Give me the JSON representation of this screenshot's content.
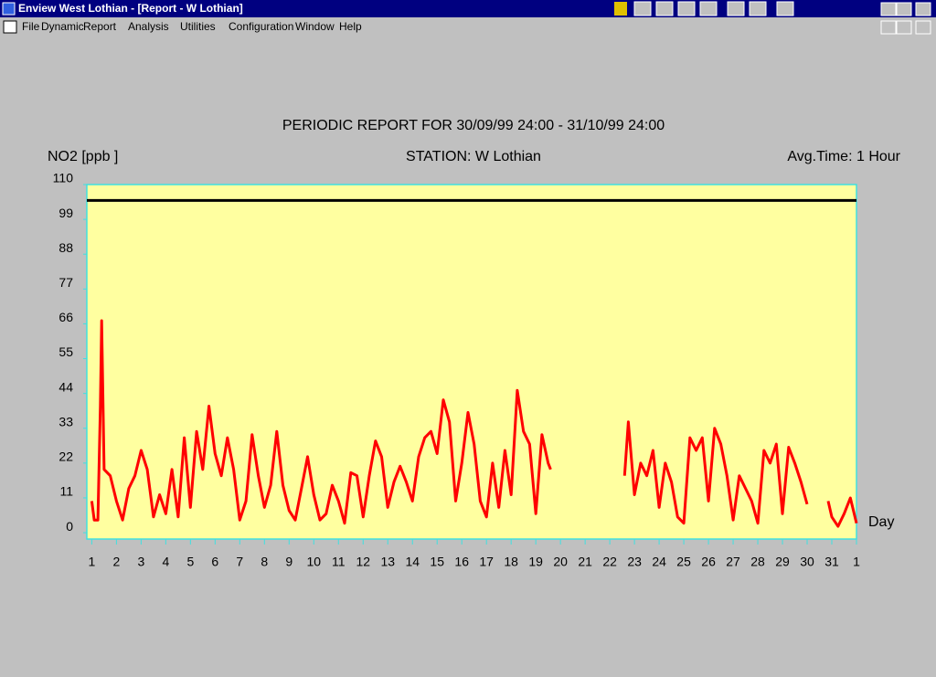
{
  "window": {
    "title": "Enview West Lothian - [Report - W Lothian]"
  },
  "menu": [
    "File",
    "Dynamic",
    "Report",
    "Analysis",
    "Utilities",
    "Configuration",
    "Window",
    "Help"
  ],
  "chart_data": {
    "type": "line",
    "title": "PERIODIC REPORT FOR 30/09/99 24:00 - 31/10/99 24:00",
    "y_label": "NO2  [ppb ]",
    "station": "STATION: W Lothian",
    "avg_time": "Avg.Time: 1 Hour",
    "x_label": "Day",
    "color": "#ff0000",
    "threshold": 105,
    "threshold_color": "#000000",
    "background": "#ffffa0",
    "border_color": "#40e0e0",
    "xlim": [
      0.8,
      32
    ],
    "ylim": [
      -2,
      110
    ],
    "yticks": [
      0,
      11,
      22,
      33,
      44,
      55,
      66,
      77,
      88,
      99,
      110
    ],
    "xticks": [
      1,
      2,
      3,
      4,
      5,
      6,
      7,
      8,
      9,
      10,
      11,
      12,
      13,
      14,
      15,
      16,
      17,
      18,
      19,
      20,
      21,
      22,
      23,
      24,
      25,
      26,
      27,
      28,
      29,
      30,
      31,
      {
        "value": 32,
        "label": "1"
      }
    ],
    "x": [
      1.0,
      1.1,
      1.25,
      1.35,
      1.4,
      1.5,
      1.75,
      2.0,
      2.25,
      2.5,
      2.75,
      3.0,
      3.25,
      3.5,
      3.75,
      4.0,
      4.25,
      4.5,
      4.75,
      5.0,
      5.25,
      5.5,
      5.75,
      6.0,
      6.25,
      6.5,
      6.75,
      7.0,
      7.25,
      7.5,
      7.75,
      8.0,
      8.25,
      8.5,
      8.75,
      9.0,
      9.25,
      9.5,
      9.75,
      10.0,
      10.25,
      10.5,
      10.75,
      11.0,
      11.25,
      11.5,
      11.75,
      12.0,
      12.25,
      12.5,
      12.75,
      13.0,
      13.25,
      13.5,
      13.75,
      14.0,
      14.25,
      14.5,
      14.75,
      15.0,
      15.25,
      15.5,
      15.75,
      16.0,
      16.25,
      16.5,
      16.75,
      17.0,
      17.25,
      17.5,
      17.75,
      18.0,
      18.25,
      18.5,
      18.75,
      19.0,
      19.25,
      19.5,
      19.6,
      20.0,
      22.6,
      22.75,
      23.0,
      23.25,
      23.5,
      23.75,
      24.0,
      24.25,
      24.5,
      24.75,
      25.0,
      25.25,
      25.5,
      25.75,
      26.0,
      26.25,
      26.5,
      26.75,
      27.0,
      27.25,
      27.5,
      27.75,
      28.0,
      28.25,
      28.5,
      28.75,
      29.0,
      29.25,
      29.5,
      29.75,
      30.0,
      30.4,
      30.85,
      31.0,
      31.25,
      31.5,
      31.75,
      32.0
    ],
    "values": [
      10,
      4,
      4,
      40,
      67,
      20,
      18,
      10,
      4,
      14,
      18,
      26,
      20,
      5,
      12,
      6,
      20,
      5,
      30,
      8,
      32,
      20,
      40,
      25,
      18,
      30,
      20,
      4,
      10,
      31,
      18,
      8,
      15,
      32,
      15,
      7,
      4,
      14,
      24,
      12,
      4,
      6,
      15,
      10,
      3,
      19,
      18,
      5,
      18,
      29,
      24,
      8,
      16,
      21,
      16,
      10,
      24,
      30,
      32,
      25,
      42,
      35,
      10,
      22,
      38,
      28,
      10,
      5,
      22,
      8,
      26,
      12,
      45,
      32,
      28,
      6,
      31,
      22,
      20,
      null,
      18,
      35,
      12,
      22,
      18,
      26,
      8,
      22,
      16,
      5,
      3,
      30,
      26,
      30,
      10,
      33,
      28,
      18,
      4,
      18,
      14,
      10,
      3,
      26,
      22,
      28,
      6,
      27,
      22,
      16,
      9,
      null,
      10,
      5,
      2,
      6,
      11,
      3
    ]
  }
}
